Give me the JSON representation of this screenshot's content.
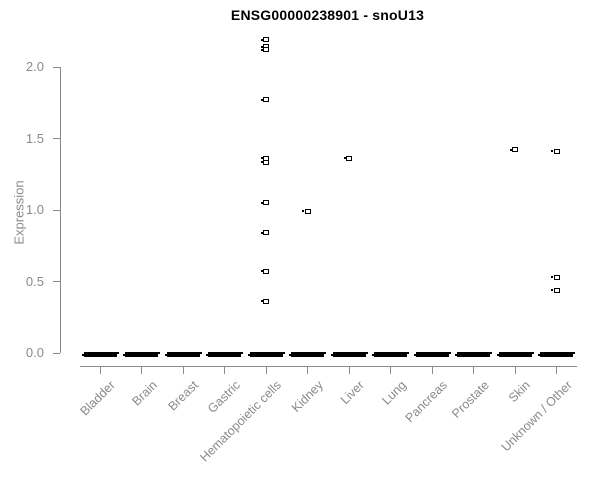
{
  "chart_data": {
    "type": "scatter",
    "subtype": "strip-plot",
    "title": "ENSG00000238901 - snoU13",
    "xlabel": "",
    "ylabel": "Expression",
    "ylim": [
      0,
      2.2
    ],
    "ytick_labels": [
      "0.0",
      "0.5",
      "1.0",
      "1.5",
      "2.0"
    ],
    "grid": false,
    "legend": "none",
    "marker": "small-open-square",
    "colors": {
      "points": "#000000",
      "axis": "#8a8a8a",
      "tick_labels": "#8a8a8a",
      "title": "#000000",
      "background": "#ffffff"
    },
    "categories": [
      "Bladder",
      "Brain",
      "Breast",
      "Gastric",
      "Hematopoietic cells",
      "Kidney",
      "Liver",
      "Lung",
      "Pancreas",
      "Prostate",
      "Skin",
      "Unknown / Other"
    ],
    "points_by_category": [
      {
        "category": "Bladder",
        "zero_cluster": true,
        "nonzero_values": []
      },
      {
        "category": "Brain",
        "zero_cluster": true,
        "nonzero_values": []
      },
      {
        "category": "Breast",
        "zero_cluster": true,
        "nonzero_values": []
      },
      {
        "category": "Gastric",
        "zero_cluster": true,
        "nonzero_values": []
      },
      {
        "category": "Hematopoietic cells",
        "zero_cluster": true,
        "nonzero_values": [
          2.19,
          2.14,
          2.12,
          1.77,
          1.36,
          1.33,
          1.05,
          0.84,
          0.57,
          0.36
        ]
      },
      {
        "category": "Kidney",
        "zero_cluster": true,
        "nonzero_values": [
          0.99
        ]
      },
      {
        "category": "Liver",
        "zero_cluster": true,
        "nonzero_values": [
          1.36
        ]
      },
      {
        "category": "Lung",
        "zero_cluster": true,
        "nonzero_values": []
      },
      {
        "category": "Pancreas",
        "zero_cluster": true,
        "nonzero_values": []
      },
      {
        "category": "Prostate",
        "zero_cluster": true,
        "nonzero_values": []
      },
      {
        "category": "Skin",
        "zero_cluster": true,
        "nonzero_values": [
          1.42
        ]
      },
      {
        "category": "Unknown / Other",
        "zero_cluster": true,
        "nonzero_values": [
          1.41,
          0.53,
          0.44
        ]
      }
    ]
  }
}
